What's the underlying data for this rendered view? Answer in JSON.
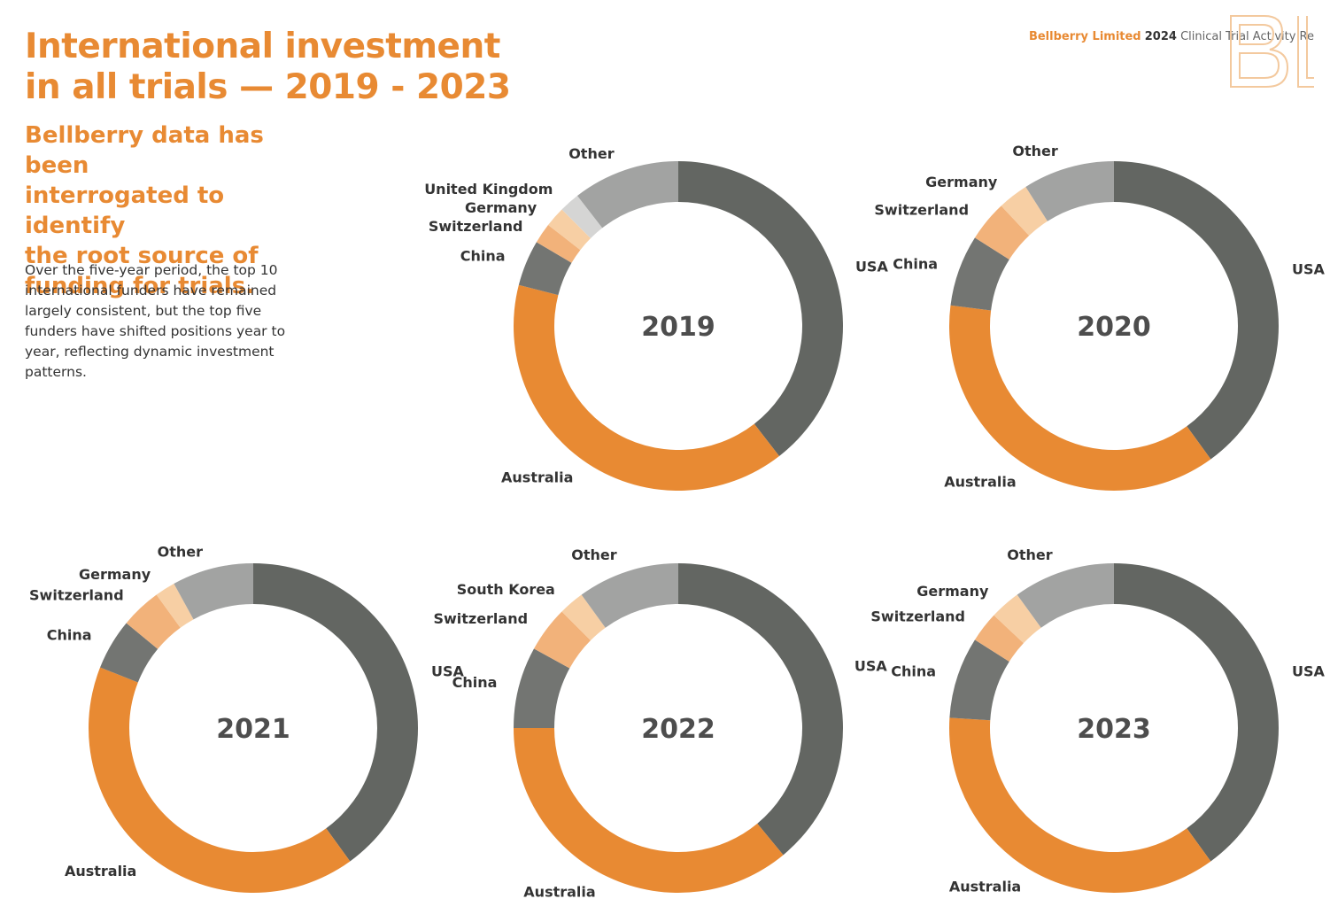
{
  "page": {
    "title": "International investment\nin all trials — 2019 - 2023",
    "subtitle": "Bellberry data has been\ninterrogated to identify\nthe root source of\nfunding for trials.",
    "body": "Over the five-year period, the top 10\ninternational funders have remained\nlargely consistent, but the top five\nfunders have shifted positions year to\nyear, reflecting dynamic investment\npatterns.",
    "header": {
      "org": "Bellberry Limited",
      "year": "2024",
      "report": "Clinical Trial Activity Re"
    },
    "logo_letters": "Bl"
  },
  "colors": {
    "accent": "#e88a33",
    "USA": "#636662",
    "Australia": "#e88a33",
    "China": "#737572",
    "Switzerland": "#f2b27a",
    "Germany": "#f7cfa4",
    "United Kingdom": "#d5d5d4",
    "South Korea": "#f7cfa4",
    "Other": "#a2a3a2"
  },
  "chart_data": [
    {
      "type": "donut",
      "title": "2019",
      "unit": "percent",
      "categories": [
        "USA",
        "Australia",
        "China",
        "Switzerland",
        "Germany",
        "United Kingdom",
        "Other"
      ],
      "values": [
        39.5,
        39.5,
        4.5,
        2,
        2,
        2,
        10.5
      ]
    },
    {
      "type": "donut",
      "title": "2020",
      "unit": "percent",
      "categories": [
        "USA",
        "Australia",
        "China",
        "Switzerland",
        "Germany",
        "Other"
      ],
      "values": [
        40,
        37,
        7,
        4,
        3,
        9
      ]
    },
    {
      "type": "donut",
      "title": "2021",
      "unit": "percent",
      "categories": [
        "USA",
        "Australia",
        "China",
        "Switzerland",
        "Germany",
        "Other"
      ],
      "values": [
        40,
        41,
        5,
        4,
        2,
        8
      ]
    },
    {
      "type": "donut",
      "title": "2022",
      "unit": "percent",
      "categories": [
        "USA",
        "Australia",
        "China",
        "Switzerland",
        "South Korea",
        "Other"
      ],
      "values": [
        39,
        36,
        8,
        4.5,
        2.5,
        10
      ]
    },
    {
      "type": "donut",
      "title": "2023",
      "unit": "percent",
      "categories": [
        "USA",
        "Australia",
        "China",
        "Switzerland",
        "Germany",
        "Other"
      ],
      "values": [
        40,
        36,
        8,
        3,
        3,
        10
      ]
    }
  ]
}
